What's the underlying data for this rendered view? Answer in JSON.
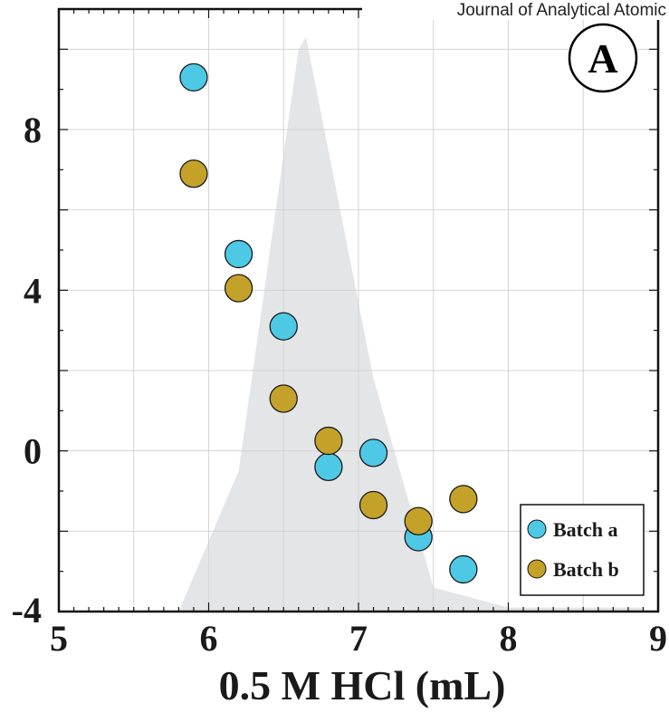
{
  "header": {
    "journal": "Journal of Analytical Atomic"
  },
  "panel_label": "A",
  "colors": {
    "series_a": "#4dc9e6",
    "series_b": "#c4a22a",
    "shade": "#e4e5e7",
    "grid": "#d4d4d4",
    "frame": "#111111"
  },
  "chart_data": {
    "type": "scatter",
    "title": "",
    "xlabel": "0.5 M HCl (mL)",
    "ylabel": "",
    "xlim": [
      5,
      9
    ],
    "ylim": [
      -4,
      11
    ],
    "x_ticks": [
      5,
      6,
      7,
      8,
      9
    ],
    "x_tick_labels": [
      "5",
      "6",
      "7",
      "8",
      "9"
    ],
    "y_ticks": [
      -4,
      0,
      4,
      8
    ],
    "y_tick_labels": [
      "-4",
      "0",
      "4",
      "8"
    ],
    "grid": true,
    "legend_position": "bottom-right",
    "shaded_region": {
      "x": [
        5.8,
        6.2,
        6.6,
        6.65,
        7.1,
        7.5,
        8.0,
        8.9
      ],
      "y": [
        -4,
        -0.5,
        10,
        10.3,
        1.8,
        -3.4,
        -3.9,
        -3.9
      ]
    },
    "series": [
      {
        "name": "Batch a",
        "x": [
          5.9,
          6.2,
          6.5,
          6.8,
          7.1,
          7.4,
          7.7
        ],
        "y": [
          9.3,
          4.9,
          3.1,
          -0.4,
          -0.05,
          -2.15,
          -2.95
        ]
      },
      {
        "name": "Batch b",
        "x": [
          5.9,
          6.2,
          6.5,
          6.8,
          7.1,
          7.4,
          7.7
        ],
        "y": [
          6.9,
          4.05,
          1.3,
          0.25,
          -1.35,
          -1.75,
          -1.2
        ]
      }
    ]
  }
}
